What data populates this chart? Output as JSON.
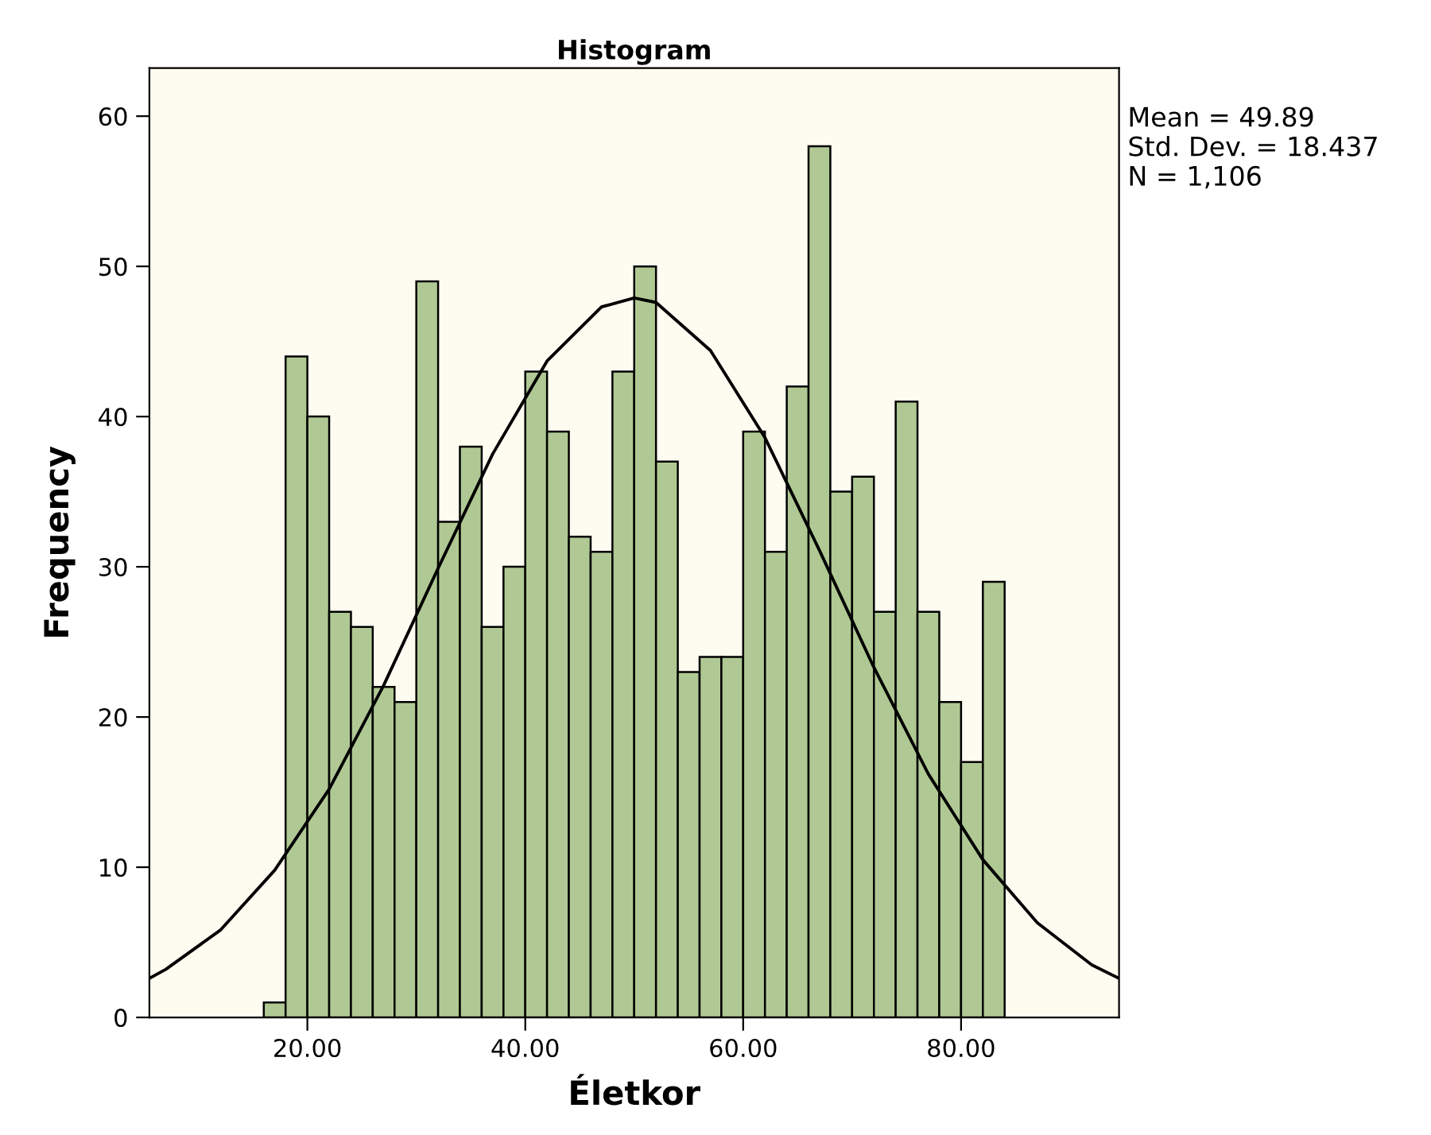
{
  "chart_data": {
    "type": "histogram",
    "title": "Histogram",
    "xlabel": "Életkor",
    "ylabel": "Frequency",
    "bins": [
      16,
      18,
      20,
      22,
      24,
      26,
      28,
      30,
      32,
      34,
      36,
      38,
      40,
      42,
      44,
      46,
      48,
      50,
      52,
      54,
      56,
      58,
      60,
      62,
      64,
      66,
      68,
      70,
      72,
      74,
      76,
      78,
      80,
      82,
      84
    ],
    "series": [
      {
        "color": "#b0c994",
        "values": [
          1,
          44,
          40,
          27,
          26,
          22,
          21,
          49,
          33,
          38,
          26,
          30,
          43,
          39,
          32,
          31,
          43,
          50,
          37,
          23,
          24,
          24,
          39,
          31,
          42,
          58,
          35,
          36,
          27,
          41,
          27,
          21,
          17,
          29
        ]
      },
      {
        "type": "line",
        "color": "#000000",
        "x": [
          5.5,
          7,
          12,
          17,
          22,
          27,
          32,
          37,
          42,
          47,
          50,
          52,
          57,
          62,
          67,
          72,
          77,
          82,
          87,
          92,
          94.5
        ],
        "values": [
          2.6,
          3.2,
          5.8,
          9.8,
          15.2,
          22.1,
          29.9,
          37.5,
          43.7,
          47.3,
          47.9,
          47.6,
          44.4,
          38.6,
          31.1,
          23.3,
          16.2,
          10.5,
          6.3,
          3.5,
          2.6
        ]
      }
    ],
    "xlim": [
      5.5,
      94.5
    ],
    "ylim": [
      0,
      63.2
    ],
    "xticks": [
      {
        "value": 20,
        "label": "20.00"
      },
      {
        "value": 40,
        "label": "40.00"
      },
      {
        "value": 60,
        "label": "60.00"
      },
      {
        "value": 80,
        "label": "80.00"
      }
    ],
    "yticks": [
      0,
      10,
      20,
      30,
      40,
      50,
      60
    ],
    "grid": false,
    "legend": false,
    "annotations": [
      "Mean = 49.89",
      "Std. Dev. = 18.437",
      "N = 1,106"
    ]
  }
}
